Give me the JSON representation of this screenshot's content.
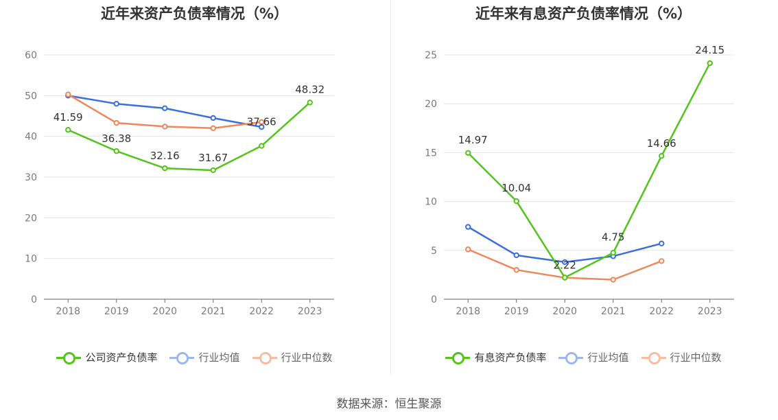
{
  "source_text": "数据来源：恒生聚源",
  "colors": {
    "company": "#52c41a",
    "avg": "#3b6fde",
    "median": "#f0875a",
    "grid": "#e3e3e3",
    "axis": "#666666"
  },
  "chart_data": [
    {
      "type": "line",
      "title": "近年来资产负债率情况（%）",
      "categories": [
        "2018",
        "2019",
        "2020",
        "2021",
        "2022",
        "2023"
      ],
      "ylim": [
        0,
        60
      ],
      "yticks": [
        0,
        10,
        20,
        30,
        40,
        50,
        60
      ],
      "grid": true,
      "legend_position": "bottom",
      "series": [
        {
          "name": "公司资产负债率",
          "values": [
            41.59,
            36.38,
            32.16,
            31.67,
            37.66,
            48.32
          ],
          "labels": [
            "41.59",
            "36.38",
            "32.16",
            "31.67",
            "37.66",
            "48.32"
          ],
          "color": "#52c41a"
        },
        {
          "name": "行业均值",
          "values": [
            50.0,
            48.0,
            46.9,
            44.5,
            42.3,
            null
          ],
          "color": "#3b6fde"
        },
        {
          "name": "行业中位数",
          "values": [
            50.3,
            43.3,
            42.4,
            42.0,
            43.5,
            null
          ],
          "color": "#f0875a"
        }
      ]
    },
    {
      "type": "line",
      "title": "近年来有息资产负债率情况（%）",
      "categories": [
        "2018",
        "2019",
        "2020",
        "2021",
        "2022",
        "2023"
      ],
      "ylim": [
        0,
        25
      ],
      "yticks": [
        0,
        5,
        10,
        15,
        20,
        25
      ],
      "grid": true,
      "legend_position": "bottom",
      "series": [
        {
          "name": "有息资产负债率",
          "values": [
            14.97,
            10.04,
            2.22,
            4.75,
            14.66,
            24.15
          ],
          "labels": [
            "14.97",
            "10.04",
            "2.22",
            "4.75",
            "14.66",
            "24.15"
          ],
          "color": "#52c41a"
        },
        {
          "name": "行业均值",
          "values": [
            7.4,
            4.5,
            3.8,
            4.4,
            5.7,
            null
          ],
          "color": "#3b6fde"
        },
        {
          "name": "行业中位数",
          "values": [
            5.1,
            3.0,
            2.2,
            2.0,
            3.9,
            null
          ],
          "color": "#f0875a"
        }
      ]
    }
  ]
}
